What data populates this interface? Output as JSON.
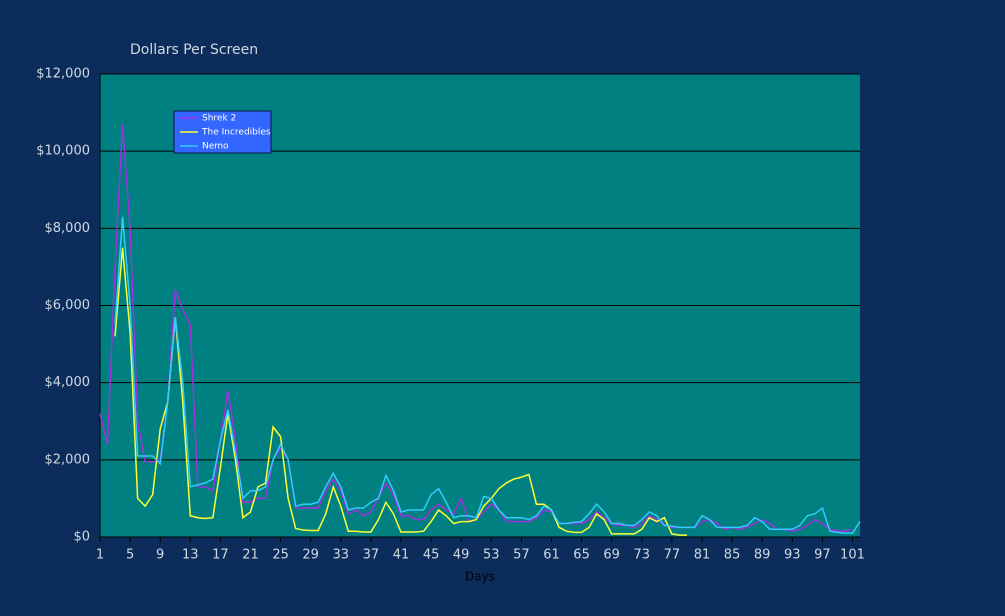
{
  "chart_data": {
    "type": "line",
    "title": "Dollars Per Screen",
    "x_label": "Days",
    "x": [
      1,
      2,
      3,
      4,
      5,
      6,
      7,
      8,
      9,
      10,
      11,
      12,
      13,
      14,
      15,
      16,
      17,
      18,
      19,
      20,
      21,
      22,
      23,
      24,
      25,
      26,
      27,
      28,
      29,
      30,
      31,
      32,
      33,
      34,
      35,
      36,
      37,
      38,
      39,
      40,
      41,
      42,
      43,
      44,
      45,
      46,
      47,
      48,
      49,
      50,
      51,
      52,
      53,
      54,
      55,
      56,
      57,
      58,
      59,
      60,
      61,
      62,
      63,
      64,
      65,
      66,
      67,
      68,
      69,
      70,
      71,
      72,
      73,
      74,
      75,
      76,
      77,
      78,
      79,
      80,
      81,
      82,
      83,
      84,
      85,
      86,
      87,
      88,
      89,
      90,
      91,
      92,
      93,
      94,
      95,
      96,
      97,
      98,
      99,
      100,
      101,
      102
    ],
    "xlim": [
      1,
      102
    ],
    "xticks": [
      1,
      5,
      9,
      13,
      17,
      21,
      25,
      29,
      33,
      37,
      41,
      45,
      49,
      53,
      57,
      61,
      65,
      69,
      73,
      77,
      81,
      85,
      89,
      93,
      97,
      101
    ],
    "ylim": [
      0,
      12000
    ],
    "yticks": [
      {
        "value": 0,
        "label": "$0"
      },
      {
        "value": 2000,
        "label": "$2,000"
      },
      {
        "value": 4000,
        "label": "$4,000"
      },
      {
        "value": 6000,
        "label": "$6,000"
      },
      {
        "value": 8000,
        "label": "$8,000"
      },
      {
        "value": 10000,
        "label": "$10,000"
      },
      {
        "value": 12000,
        "label": "$12,000"
      }
    ],
    "grid": true,
    "legend": "upper-left",
    "series": [
      {
        "name": "Shrek 2",
        "color": "#a030e0",
        "values": [
          3200,
          2400,
          7000,
          10700,
          8000,
          3000,
          1950,
          1950,
          2000,
          3500,
          6400,
          5900,
          5500,
          1300,
          1300,
          1200,
          2500,
          3800,
          2500,
          900,
          900,
          1000,
          1000,
          2000,
          2300,
          2000,
          750,
          750,
          750,
          750,
          1200,
          1500,
          1200,
          600,
          700,
          550,
          650,
          1000,
          1400,
          1100,
          550,
          550,
          450,
          450,
          700,
          850,
          700,
          600,
          1000,
          400,
          450,
          650,
          850,
          700,
          400,
          400,
          400,
          400,
          500,
          700,
          650,
          350,
          350,
          350,
          350,
          450,
          650,
          500,
          350,
          300,
          300,
          250,
          350,
          550,
          450,
          300,
          250,
          250,
          250,
          250,
          400,
          450,
          350,
          200,
          250,
          200,
          250,
          350,
          450,
          350,
          200,
          200,
          150,
          200,
          300,
          450,
          350,
          200,
          150,
          150,
          200,
          null
        ]
      },
      {
        "name": "The Incredibles",
        "color": "#ffff33",
        "values": [
          null,
          null,
          5200,
          7500,
          5300,
          1000,
          800,
          1100,
          2800,
          3500,
          5700,
          3500,
          550,
          500,
          480,
          500,
          1800,
          3200,
          2000,
          500,
          650,
          1300,
          1400,
          2850,
          2600,
          1000,
          220,
          180,
          170,
          170,
          600,
          1300,
          800,
          150,
          150,
          130,
          130,
          450,
          900,
          600,
          130,
          130,
          130,
          150,
          400,
          700,
          550,
          350,
          400,
          400,
          450,
          800,
          1000,
          1250,
          1400,
          1500,
          1550,
          1620,
          850,
          850,
          700,
          250,
          150,
          120,
          120,
          250,
          600,
          450,
          80,
          80,
          80,
          80,
          200,
          500,
          400,
          500,
          80,
          50,
          50,
          null,
          null,
          null,
          null,
          null,
          null,
          null,
          null,
          null,
          null,
          null,
          null,
          null,
          null,
          null,
          null,
          null,
          null,
          null,
          null,
          null,
          null,
          null
        ]
      },
      {
        "name": "Nemo",
        "color": "#33ccff",
        "values": [
          null,
          null,
          5500,
          8300,
          6000,
          2100,
          2100,
          2100,
          1900,
          3500,
          5700,
          4000,
          1300,
          1350,
          1400,
          1500,
          2500,
          3300,
          2200,
          1000,
          1200,
          1200,
          1300,
          2000,
          2400,
          2000,
          800,
          850,
          850,
          900,
          1300,
          1650,
          1300,
          700,
          750,
          750,
          900,
          1000,
          1600,
          1200,
          650,
          700,
          700,
          700,
          1100,
          1250,
          900,
          500,
          550,
          550,
          500,
          1050,
          1000,
          700,
          500,
          500,
          500,
          450,
          550,
          800,
          700,
          350,
          350,
          380,
          400,
          600,
          850,
          650,
          350,
          350,
          300,
          300,
          450,
          650,
          550,
          300,
          280,
          250,
          250,
          250,
          550,
          450,
          250,
          250,
          250,
          250,
          300,
          500,
          400,
          200,
          200,
          200,
          200,
          300,
          550,
          600,
          750,
          150,
          120,
          100,
          100,
          400
        ]
      }
    ]
  }
}
